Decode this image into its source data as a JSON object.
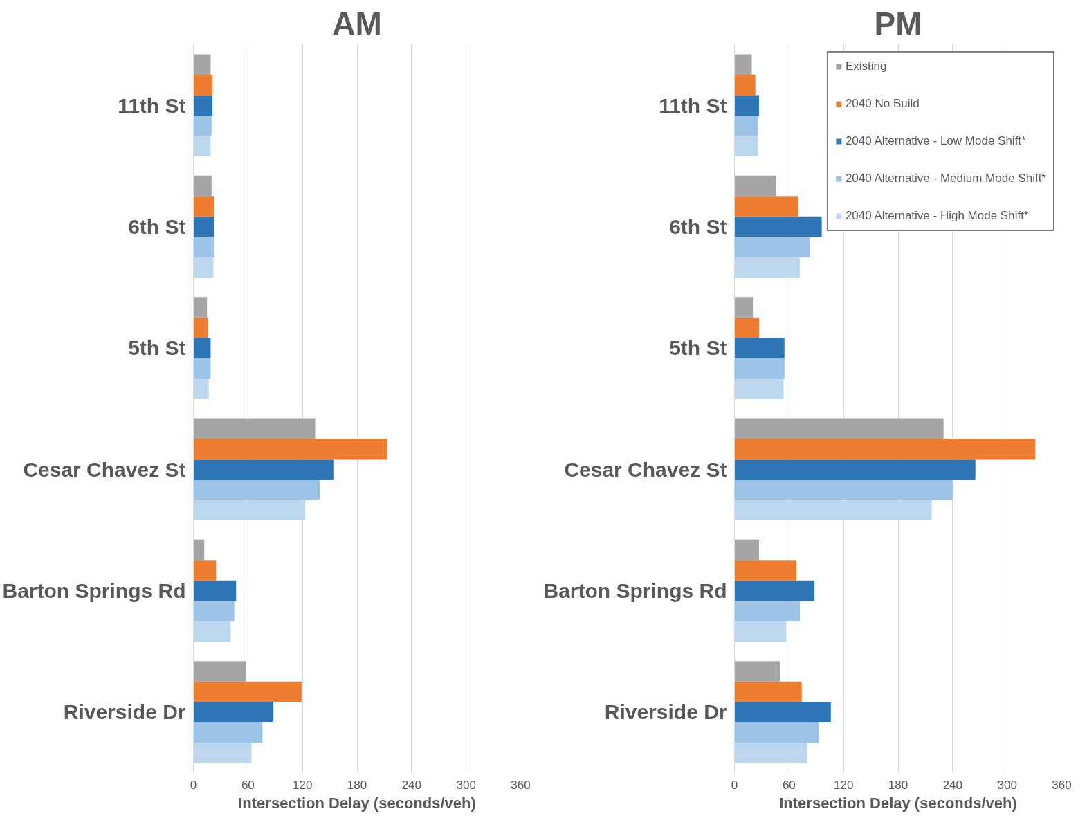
{
  "chart_data": [
    {
      "type": "bar",
      "orientation": "horizontal",
      "title": "AM",
      "xlabel": "Intersection Delay (seconds/veh)",
      "categories": [
        "11th St",
        "6th St",
        "5th St",
        "Cesar Chavez St",
        "Barton Springs Rd",
        "Riverside Dr"
      ],
      "xlim": [
        0,
        360
      ],
      "xticks": [
        0,
        60,
        120,
        180,
        240,
        300,
        360
      ],
      "grid": "x",
      "series": [
        {
          "color": "#a5a5a5",
          "values": [
            19,
            20,
            15,
            134,
            12,
            58
          ]
        },
        {
          "color": "#ed7d31",
          "values": [
            21,
            23,
            16,
            213,
            25,
            119
          ]
        },
        {
          "color": "#2e75b6",
          "values": [
            21,
            23,
            19,
            154,
            47,
            88
          ]
        },
        {
          "color": "#9dc3e6",
          "values": [
            20,
            23,
            19,
            139,
            45,
            76
          ]
        },
        {
          "color": "#bdd7ee",
          "values": [
            19,
            22,
            17,
            123,
            41,
            64
          ]
        }
      ]
    },
    {
      "type": "bar",
      "orientation": "horizontal",
      "title": "PM",
      "xlabel": "Intersection Delay (seconds/veh)",
      "categories": [
        "11th St",
        "6th St",
        "5th St",
        "Cesar Chavez St",
        "Barton Springs Rd",
        "Riverside Dr"
      ],
      "xlim": [
        0,
        360
      ],
      "xticks": [
        0,
        60,
        120,
        180,
        240,
        300,
        360
      ],
      "grid": "x",
      "legend": "top right",
      "series": [
        {
          "name": "Existing",
          "color": "#a5a5a5",
          "values": [
            19,
            46,
            21,
            230,
            27,
            50
          ]
        },
        {
          "name": "2040 No Build",
          "color": "#ed7d31",
          "values": [
            23,
            70,
            27,
            331,
            68,
            74
          ]
        },
        {
          "name": "2040 Alternative - Low Mode Shift*",
          "color": "#2e75b6",
          "values": [
            27,
            96,
            55,
            265,
            88,
            106
          ]
        },
        {
          "name": "2040 Alternative - Medium Mode Shift*",
          "color": "#9dc3e6",
          "values": [
            26,
            83,
            55,
            240,
            72,
            93
          ]
        },
        {
          "name": "2040 Alternative - High Mode Shift*",
          "color": "#bdd7ee",
          "values": [
            26,
            72,
            54,
            217,
            57,
            80
          ]
        }
      ]
    }
  ]
}
